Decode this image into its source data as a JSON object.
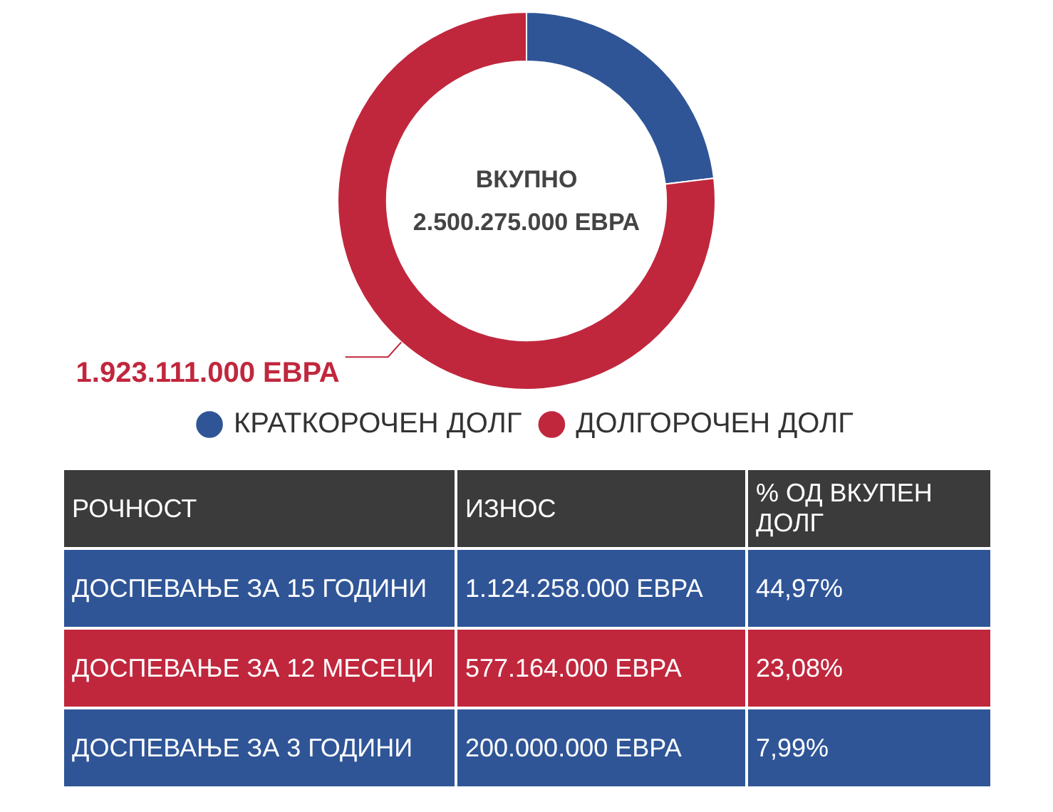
{
  "chart_data": {
    "type": "donut",
    "categories": [
      "КРАТКОРОЧЕН ДОЛГ",
      "ДОЛГОРОЧЕН ДОЛГ"
    ],
    "values": [
      577164000,
      1923111000
    ],
    "colors": [
      "#2f5597",
      "#c0273d"
    ],
    "value_labels": [
      null,
      "1.923.111.000 ЕВРА"
    ],
    "legend": "bottom",
    "annotations": [
      "ВКУПНО",
      "2.500.275.000 ЕВРА",
      "РОЧНОСТ",
      "ИЗНОС",
      "% ОД ВКУПЕН ДОЛГ",
      "ДОСПЕВАЊЕ ЗА 15 ГОДИНИ",
      "1.124.258.000 ЕВРА",
      "44,97%",
      "ДОСПЕВАЊЕ ЗА 12 МЕСЕЦИ",
      "577.164.000 ЕВРА",
      "23,08%",
      "ДОСПЕВАЊЕ ЗА 3 ГОДИНИ",
      "200.000.000 ЕВРА",
      "7,99%"
    ]
  }
}
